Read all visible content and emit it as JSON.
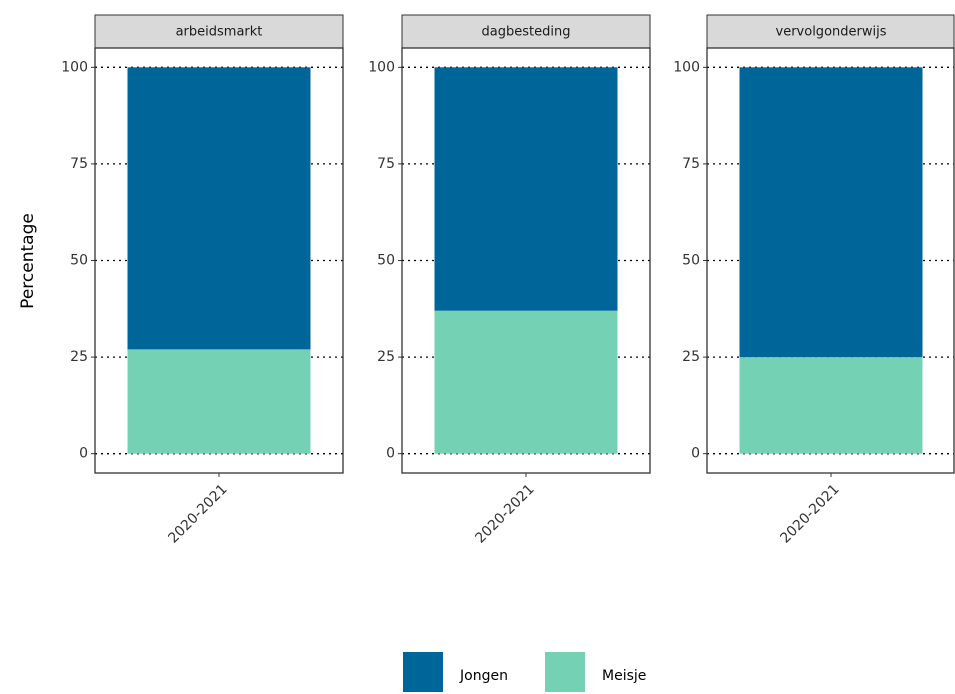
{
  "chart_data": {
    "type": "bar",
    "stacked": true,
    "y_label": "Percentage",
    "panels": [
      "arbeidsmarkt",
      "dagbesteding",
      "vervolgonderwijs"
    ],
    "categories": [
      "2020-2021",
      "2020-2021",
      "2020-2021"
    ],
    "series": [
      {
        "name": "Jongen",
        "color": "#006699",
        "values": [
          73,
          63,
          75
        ]
      },
      {
        "name": "Meisje",
        "color": "#74d1b4",
        "values": [
          27,
          37,
          25
        ]
      }
    ],
    "ylim": [
      -5,
      105
    ],
    "yticks": [
      0,
      25,
      50,
      75,
      100
    ],
    "grid": true,
    "legend": "bottom"
  }
}
